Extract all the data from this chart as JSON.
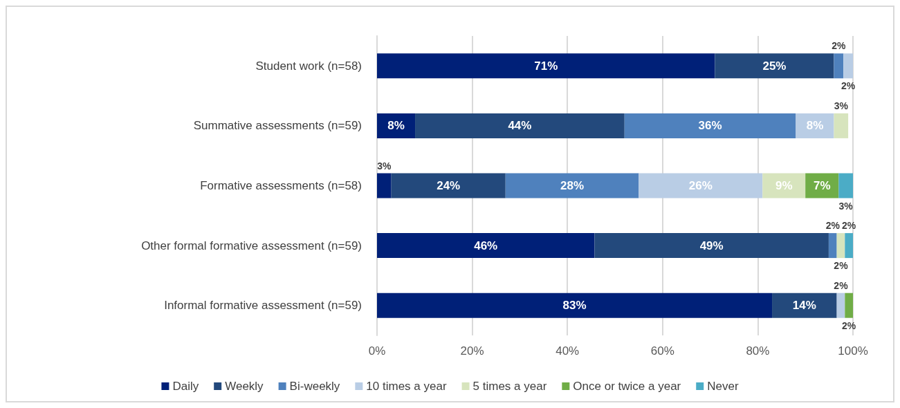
{
  "chart_data": {
    "type": "bar",
    "orientation": "horizontal",
    "stacked": true,
    "categories": [
      "Student work (n=58)",
      "Summative assessments (n=59)",
      "Formative assessments (n=58)",
      "Other formal formative assessment (n=59)",
      "Informal formative assessment (n=59)"
    ],
    "series": [
      {
        "name": "Daily",
        "color": "#002078",
        "values": [
          71,
          8,
          3,
          45.7,
          83.0
        ],
        "value_labels": [
          "71%",
          "8%",
          "3%",
          "46%",
          "83%"
        ]
      },
      {
        "name": "Weekly",
        "color": "#23497c",
        "values": [
          25,
          44,
          24,
          49.2,
          13.6
        ],
        "value_labels": [
          "25%",
          "44%",
          "24%",
          "49%",
          "14%"
        ]
      },
      {
        "name": "Bi-weekly",
        "color": "#4f81bd",
        "values": [
          2,
          36,
          28,
          1.7,
          null
        ],
        "value_labels": [
          "2%",
          "36%",
          "28%",
          "2%",
          null
        ]
      },
      {
        "name": "10 times a year",
        "color": "#b9cde5",
        "values": [
          2,
          8,
          26,
          null,
          1.7
        ],
        "value_labels": [
          "2%",
          "8%",
          "26%",
          null,
          "2%"
        ]
      },
      {
        "name": "5 times a year",
        "color": "#d7e4bd",
        "values": [
          null,
          3,
          9,
          1.7,
          null
        ],
        "value_labels": [
          null,
          "3%",
          "9%",
          "2%",
          null
        ]
      },
      {
        "name": "Once or twice a year",
        "color": "#70ad47",
        "values": [
          null,
          null,
          7,
          null,
          1.7
        ],
        "value_labels": [
          null,
          null,
          "7%",
          null,
          "2%"
        ]
      },
      {
        "name": "Never",
        "color": "#4bacc6",
        "values": [
          null,
          null,
          3,
          1.7,
          null
        ],
        "value_labels": [
          null,
          null,
          "3%",
          "2%",
          null
        ]
      }
    ],
    "xlim": [
      0,
      100
    ],
    "xticks": [
      {
        "value": 0,
        "label": "0%"
      },
      {
        "value": 20,
        "label": "20%"
      },
      {
        "value": 40,
        "label": "40%"
      },
      {
        "value": 60,
        "label": "60%"
      },
      {
        "value": 80,
        "label": "80%"
      },
      {
        "value": 100,
        "label": "100%"
      }
    ],
    "grid": "x",
    "legend": "bottom"
  }
}
